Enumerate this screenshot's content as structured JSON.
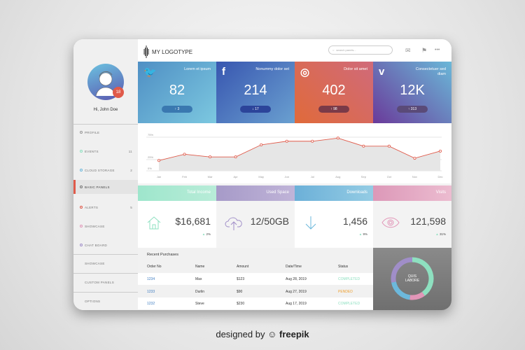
{
  "header": {
    "logo": "MY LOGOTYPE",
    "search_placeholder": "search panels...",
    "icons": [
      "mail-icon",
      "flag-icon",
      "more-icon"
    ]
  },
  "user": {
    "greeting": "Hi, John Doe",
    "badge": "18"
  },
  "nav": [
    {
      "label": "PROFILE",
      "count": "",
      "color": "#999999"
    },
    {
      "label": "EVENTS",
      "count": "11",
      "color": "#8ee0c0"
    },
    {
      "label": "CLOUD STORAGE",
      "count": "2",
      "color": "#6cb8dc"
    },
    {
      "label": "BASIC PANELS",
      "count": "",
      "color": "#777777",
      "active": true
    },
    {
      "label": "ALERTS",
      "count": "5",
      "color": "#e05a4a"
    },
    {
      "label": "SHOWCASE",
      "count": "",
      "color": "#e296b8"
    },
    {
      "label": "CHAT BOARD",
      "count": "",
      "color": "#a08ec8"
    }
  ],
  "nav_plain": [
    "SHOWCASE",
    "CUSTOM PANELS",
    "OPTIONS"
  ],
  "tiles": [
    {
      "icon": "twitter-icon",
      "glyph": "🐦",
      "caption": "Lorem et ipsum",
      "value": "82",
      "change": "↑ 3",
      "bg": "linear-gradient(135deg,#4f8fc4,#7cc8e0)",
      "pill": "#3a78b0"
    },
    {
      "icon": "facebook-icon",
      "glyph": "f",
      "caption": "Nonummy dolor set",
      "value": "214",
      "change": "↓ 17",
      "bg": "linear-gradient(135deg,#3856b0,#6aa0d0)",
      "pill": "#2c449a"
    },
    {
      "icon": "instagram-icon",
      "glyph": "◎",
      "caption": "Dolor sit amet",
      "value": "402",
      "change": "↑ 98",
      "bg": "linear-gradient(45deg,#e06a3a,#d06a7a)",
      "pill": "#7a3a48"
    },
    {
      "icon": "vimeo-icon",
      "glyph": "v",
      "caption": "Consectetuer sed diam",
      "value": "12K",
      "change": "↑ 313",
      "bg": "linear-gradient(45deg,#6a3a9a,#6ab8d8)",
      "pill": "#5a4a78"
    }
  ],
  "chart_data": {
    "type": "area",
    "x": [
      "Jan",
      "Feb",
      "Mar",
      "Apr",
      "May",
      "Jun",
      "Jul",
      "Aug",
      "Sep",
      "Oct",
      "Nov",
      "Dec"
    ],
    "values": [
      23,
      37,
      31,
      31,
      58,
      66,
      66,
      73,
      55,
      55,
      28,
      44
    ],
    "yticks": [
      "0%",
      "25%",
      "75%"
    ],
    "ylim": [
      0,
      75
    ],
    "color": "#e05a4a"
  },
  "stats": [
    {
      "title": "Total Income",
      "value": "$16,681",
      "pct": "2%",
      "icon": "house-icon",
      "color": "#8ee0c0",
      "hbg": "linear-gradient(90deg,#9ee6cc,#b8ecd8)"
    },
    {
      "title": "Used Space",
      "value": "12/50GB",
      "pct": "",
      "icon": "cloud-upload-icon",
      "color": "#a08ec8",
      "hbg": "linear-gradient(90deg,#a69ac8,#c0b4d8)"
    },
    {
      "title": "Downloads",
      "value": "1,456",
      "pct": "9%",
      "icon": "arrow-down-icon",
      "color": "#6cb8dc",
      "hbg": "linear-gradient(90deg,#6cb0d8,#94cce4)"
    },
    {
      "title": "Visits",
      "value": "121,598",
      "pct": "31%",
      "icon": "eye-icon",
      "color": "#e296b8",
      "hbg": "linear-gradient(90deg,#dc98b8,#ecbcd0)"
    }
  ],
  "purchases": {
    "title": "Recent Purchases",
    "columns": [
      "Order No",
      "Name",
      "Amount",
      "Date/Time",
      "Status"
    ],
    "rows": [
      {
        "order": "1234",
        "name": "Max",
        "amount": "$123",
        "date": "Aug 28, 2019",
        "status": "COMPLETED",
        "scolor": "#8ee0c0"
      },
      {
        "order": "1233",
        "name": "Durlin",
        "amount": "$90",
        "date": "Aug 27, 2019",
        "status": "PENDED",
        "scolor": "#f0a030"
      },
      {
        "order": "1232",
        "name": "Steve",
        "amount": "$230",
        "date": "Aug 17, 2019",
        "status": "COMPLETED",
        "scolor": "#8ee0c0"
      }
    ]
  },
  "donut": {
    "label": "QUIS LABORE",
    "segments": [
      {
        "value": 40,
        "color": "#8ee0c0"
      },
      {
        "value": 12,
        "color": "#e296b8"
      },
      {
        "value": 20,
        "color": "#6cb8dc"
      },
      {
        "value": 28,
        "color": "#a08ec8"
      }
    ]
  },
  "footer": {
    "text": "designed by",
    "brand": "freepik"
  }
}
